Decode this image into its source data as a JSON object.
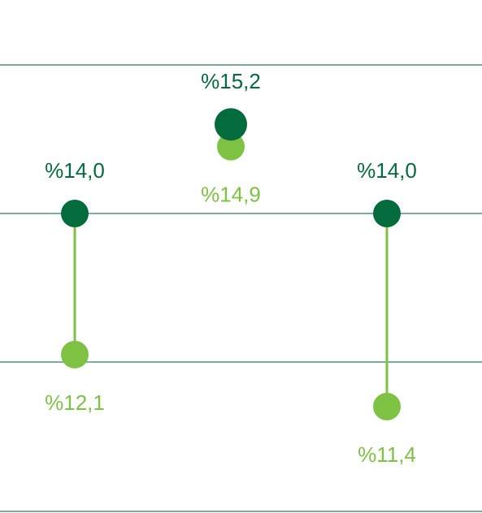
{
  "colors": {
    "dark_green": "#046b3c",
    "light_green": "#7dc242",
    "gridline": "#2e7d57",
    "connector": "#7dc242"
  },
  "chart_data": {
    "type": "dumbbell",
    "title": "",
    "xlabel": "",
    "ylabel": "",
    "ylim": [
      0,
      16
    ],
    "y_gridlines": [
      12,
      14,
      16
    ],
    "grid": true,
    "legend": "none",
    "categories": [
      "",
      "",
      ""
    ],
    "series": [
      {
        "key": "dark",
        "color": "#046b3c",
        "values": [
          14.0,
          15.2,
          14.0
        ],
        "labels": [
          "%14,0",
          "%15,2",
          "%14,0"
        ]
      },
      {
        "key": "light",
        "color": "#7dc242",
        "values": [
          12.1,
          14.9,
          11.4
        ],
        "labels": [
          "%12,1",
          "%14,9",
          "%11,4"
        ]
      }
    ]
  }
}
